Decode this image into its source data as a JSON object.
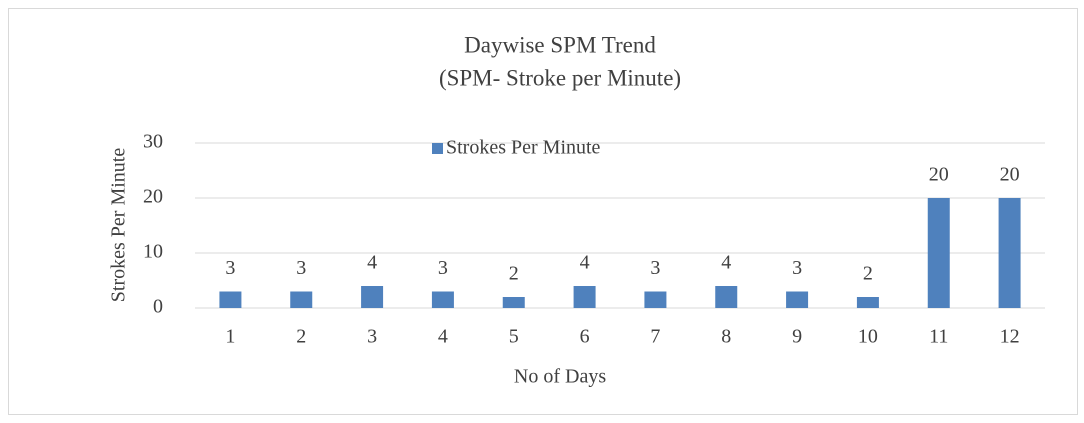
{
  "chart_data": {
    "type": "bar",
    "title": "Daywise SPM Trend",
    "subtitle": "(SPM- Stroke per Minute)",
    "x_label": "No of Days",
    "y_label": "Strokes Per Minute",
    "categories": [
      "1",
      "2",
      "3",
      "4",
      "5",
      "6",
      "7",
      "8",
      "9",
      "10",
      "11",
      "12"
    ],
    "series": [
      {
        "name": "Strokes Per Minute",
        "color": "#4f81bd",
        "values": [
          3,
          3,
          4,
          3,
          2,
          4,
          3,
          4,
          3,
          2,
          20,
          20
        ]
      }
    ],
    "ylim": [
      0,
      30
    ],
    "yticks": [
      0,
      10,
      20,
      30
    ],
    "grid": true,
    "legend": "top"
  }
}
